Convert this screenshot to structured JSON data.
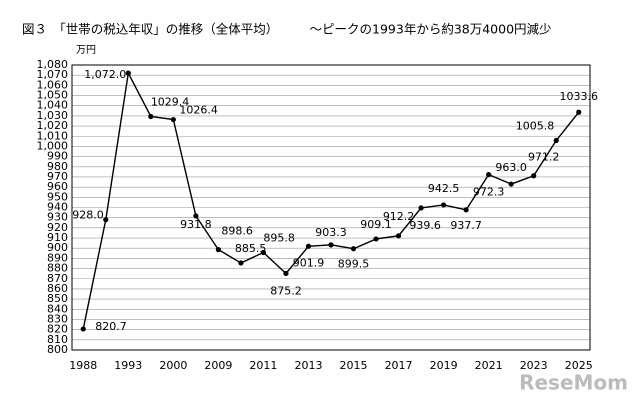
{
  "chart_data": {
    "type": "line",
    "title": "図３　「世帯の税込年収」の推移（全体平均）　　　～ピークの1993年から約38万4000円減少",
    "y_unit": "万円",
    "watermark": "ReseMom",
    "categories": [
      "1988",
      null,
      "1993",
      null,
      "2000",
      null,
      "2009",
      null,
      "2011",
      null,
      "2013",
      null,
      "2015",
      null,
      "2017",
      null,
      "2019",
      null,
      "2021",
      null,
      "2023",
      null,
      "2025"
    ],
    "series": [
      {
        "color": "#000000",
        "values": [
          820.7,
          928.0,
          1072.0,
          1029.4,
          1026.4,
          931.8,
          898.6,
          885.5,
          895.8,
          875.2,
          901.9,
          903.3,
          899.5,
          909.1,
          912.2,
          939.6,
          942.5,
          937.7,
          972.3,
          963.0,
          971.2,
          1005.8,
          1033.6
        ],
        "value_labels": [
          "820.7",
          "928.0",
          "1,072.0",
          "1029.4",
          "1026.4",
          "931.8",
          "898.6",
          "885.5",
          "895.8",
          "875.2",
          "901.9",
          "903.3",
          "899.5",
          "909.1",
          "912.2",
          "939.6",
          "942.5",
          "937.7",
          "972.3",
          "963.0",
          "971.2",
          "1005.8",
          "1033.6"
        ]
      }
    ],
    "ylim": [
      800,
      1080
    ],
    "yticks": [
      800,
      810,
      820,
      830,
      840,
      850,
      860,
      870,
      880,
      890,
      900,
      910,
      920,
      930,
      940,
      950,
      960,
      970,
      980,
      990,
      {
        "value": 1000,
        "label": "1,000"
      },
      {
        "value": 1010,
        "label": "1,010"
      },
      {
        "value": 1020,
        "label": "1,020"
      },
      {
        "value": 1030,
        "label": "1,030"
      },
      {
        "value": 1040,
        "label": "1,040"
      },
      {
        "value": 1050,
        "label": "1,050"
      },
      {
        "value": 1060,
        "label": "1,060"
      },
      {
        "value": 1070,
        "label": "1,070"
      },
      {
        "value": 1080,
        "label": "1,080"
      }
    ],
    "grid": true
  }
}
